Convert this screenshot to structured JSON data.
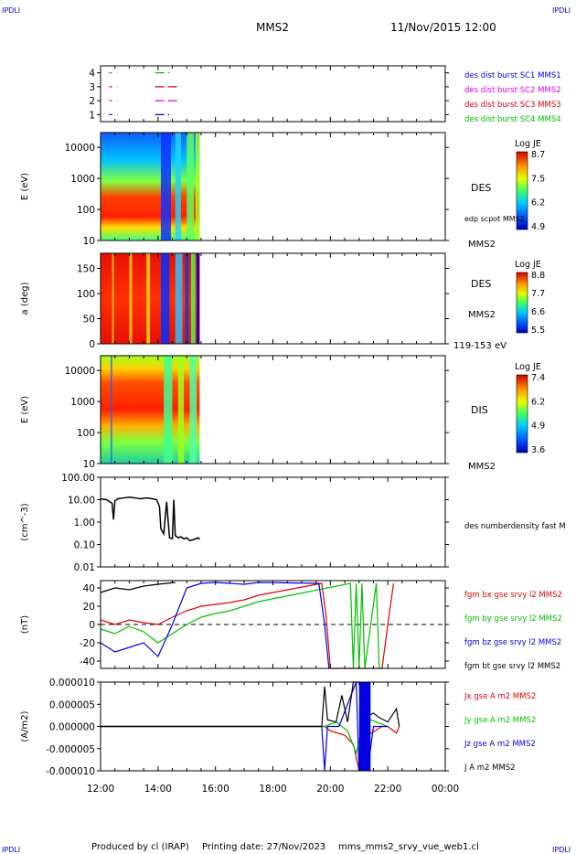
{
  "header": {
    "corner_left": "IPDLI",
    "corner_right": "IPDLI",
    "title": "MMS2",
    "datetime": "11/Nov/2015 12:00"
  },
  "footer": {
    "produced_by": "Produced by cl (IRAP)",
    "printing_date": "Printing date: 27/Nov/2023",
    "filename": "mms_mms2_srvy_vue_web1.cl",
    "corner_left": "IPDLI",
    "corner_right": "IPDLI"
  },
  "colors": {
    "red": "#e00000",
    "green": "#00c000",
    "blue": "#0000e0",
    "magenta": "#e000e0",
    "black": "#000000",
    "label_blue": "#0000c0"
  },
  "chart_data": [
    {
      "type": "scatter",
      "title": "",
      "ylabel": "",
      "yticks": [
        "1",
        "2",
        "3",
        "4"
      ],
      "ylim": [
        0.5,
        4.5
      ],
      "xlim": [
        12,
        24
      ],
      "legend": [
        "des dist burst SC1 MMS1",
        "des dist burst SC2 MMS2",
        "des dist burst SC3 MMS3",
        "des dist burst SC4 MMS4"
      ],
      "series": [
        {
          "name": "des dist burst SC1 MMS1",
          "level": 1,
          "color": "#0000e0",
          "segments": [
            [
              12.3,
              12.6
            ],
            [
              13.9,
              14.4
            ]
          ]
        },
        {
          "name": "des dist burst SC2 MMS2",
          "level": 2,
          "color": "#e000e0",
          "segments": [
            [
              12.3,
              12.6
            ],
            [
              13.9,
              14.8
            ]
          ]
        },
        {
          "name": "des dist burst SC3 MMS3",
          "level": 3,
          "color": "#e00000",
          "segments": [
            [
              12.3,
              12.6
            ],
            [
              13.9,
              14.8
            ]
          ]
        },
        {
          "name": "des dist burst SC4 MMS4",
          "level": 4,
          "color": "#00c000",
          "segments": [
            [
              12.3,
              12.6
            ],
            [
              13.9,
              14.4
            ]
          ]
        }
      ]
    },
    {
      "type": "heatmap",
      "ylabel": "E (eV)",
      "yscale": "log",
      "ylim": [
        10,
        30000
      ],
      "yticks": [
        "10000",
        "1000",
        "100",
        "10"
      ],
      "xlim": [
        12,
        24
      ],
      "data_end": 15.45,
      "colorbar": {
        "title": "Log JE",
        "labels": [
          "8.7",
          "7.5",
          "6.2",
          "4.9"
        ]
      },
      "right_labels": [
        "DES",
        "edp scpot MMS2",
        "MMS2"
      ]
    },
    {
      "type": "heatmap",
      "ylabel": "a (deg)",
      "ylim": [
        0,
        180
      ],
      "yticks": [
        "150",
        "100",
        "50",
        "0"
      ],
      "xlim": [
        12,
        24
      ],
      "data_end": 15.45,
      "colorbar": {
        "title": "Log JE",
        "labels": [
          "8.8",
          "7.7",
          "6.6",
          "5.5"
        ]
      },
      "right_labels": [
        "DES",
        "MMS2",
        "119-153 eV"
      ]
    },
    {
      "type": "heatmap",
      "ylabel": "E (eV)",
      "yscale": "log",
      "ylim": [
        10,
        30000
      ],
      "yticks": [
        "10000",
        "1000",
        "100",
        "10"
      ],
      "xlim": [
        12,
        24
      ],
      "data_end": 15.45,
      "colorbar": {
        "title": "Log JE",
        "labels": [
          "7.4",
          "6.2",
          "4.9",
          "3.6"
        ]
      },
      "right_labels": [
        "DIS",
        "MMS2"
      ]
    },
    {
      "type": "line",
      "ylabel": "(cm^-3)",
      "yscale": "log",
      "ylim": [
        0.01,
        100
      ],
      "yticks": [
        "100.00",
        "10.00",
        "1.00",
        "0.10",
        "0.01"
      ],
      "xlim": [
        12,
        24
      ],
      "legend": [
        "des numberdensity fast M"
      ],
      "series": [
        {
          "name": "des numberdensity fast M",
          "color": "#000000",
          "x": [
            12.0,
            12.2,
            12.4,
            12.45,
            12.5,
            12.6,
            12.8,
            13.0,
            13.2,
            13.4,
            13.6,
            13.8,
            13.95,
            14.05,
            14.1,
            14.2,
            14.3,
            14.4,
            14.5,
            14.55,
            14.6,
            14.7,
            14.8,
            14.9,
            15.0,
            15.1,
            15.2,
            15.3,
            15.4,
            15.45
          ],
          "y": [
            11,
            10,
            7,
            1.3,
            9,
            11,
            12,
            13,
            12,
            11,
            12,
            11,
            10,
            5,
            0.5,
            0.3,
            8,
            0.2,
            0.18,
            10,
            0.25,
            0.2,
            0.22,
            0.18,
            0.2,
            0.15,
            0.16,
            0.18,
            0.2,
            0.17
          ]
        }
      ]
    },
    {
      "type": "line",
      "ylabel": "(nT)",
      "ylim": [
        -48,
        48
      ],
      "yticks": [
        "40",
        "20",
        "0",
        "-20",
        "-40"
      ],
      "xlim": [
        12,
        24
      ],
      "legend": [
        "fgm bx gse srvy l2 MMS2",
        "fgm by gse srvy l2 MMS2",
        "fgm bz gse srvy l2 MMS2",
        "fgm bt gse srvy l2 MMS2"
      ],
      "series": [
        {
          "name": "fgm bx gse srvy l2 MMS2",
          "color": "#e00000",
          "x": [
            12.0,
            12.5,
            13.0,
            13.5,
            14.0,
            14.5,
            15.0,
            15.5,
            16.0,
            16.5,
            17.0,
            17.5,
            19.7,
            19.85,
            20.0,
            21.8,
            22.0,
            22.2
          ],
          "y": [
            5,
            0,
            5,
            2,
            0,
            8,
            15,
            20,
            22,
            24,
            27,
            32,
            45,
            10,
            -48,
            -48,
            0,
            45
          ]
        },
        {
          "name": "fgm by gse srvy l2 MMS2",
          "color": "#00c000",
          "x": [
            12.0,
            12.5,
            13.0,
            13.5,
            14.0,
            14.5,
            15.0,
            15.5,
            16.0,
            16.5,
            17.0,
            17.5,
            20.7,
            20.8,
            20.9,
            21.0,
            21.1,
            21.2,
            21.6,
            21.7
          ],
          "y": [
            -5,
            -10,
            -2,
            -8,
            -20,
            -10,
            0,
            8,
            12,
            15,
            20,
            25,
            45,
            -48,
            45,
            -48,
            45,
            -48,
            45,
            -48
          ]
        },
        {
          "name": "fgm bz gse srvy l2 MMS2",
          "color": "#0000e0",
          "x": [
            12.0,
            12.5,
            13.0,
            13.5,
            14.0,
            14.5,
            15.0,
            15.5,
            16.0,
            16.5,
            17.0,
            17.5,
            19.6,
            19.8,
            19.95
          ],
          "y": [
            -20,
            -30,
            -25,
            -20,
            -35,
            0,
            40,
            45,
            46,
            45,
            44,
            46,
            45,
            0,
            -48
          ]
        },
        {
          "name": "fgm bt gse srvy l2 MMS2",
          "color": "#000000",
          "x": [
            12.0,
            12.5,
            13.0,
            13.5,
            14.0,
            14.3,
            14.6
          ],
          "y": [
            35,
            40,
            38,
            42,
            44,
            45,
            46
          ]
        }
      ]
    },
    {
      "type": "line",
      "ylabel": "(A/m2)",
      "ylim": [
        -1e-05,
        1e-05
      ],
      "yticks": [
        "0.000010",
        "0.000005",
        "0.000000",
        "-0.000005",
        "-0.000010"
      ],
      "xlim": [
        12,
        24
      ],
      "legend": [
        "Jx gse A m2 MMS2",
        "Jy gse A m2 MMS2",
        "Jz gse A m2 MMS2",
        "J A m2 MMS2"
      ],
      "series": [
        {
          "name": "Jx gse A m2 MMS2",
          "color": "#e00000",
          "x": [
            12.0,
            15.0,
            19.8,
            20.0,
            20.5,
            20.8,
            21.0,
            21.3,
            21.8,
            22.0,
            22.3,
            22.4
          ],
          "y": [
            0,
            0,
            0,
            -1e-06,
            -2e-06,
            -4e-06,
            -1e-05,
            -2e-06,
            0,
            0,
            -1.5e-06,
            0
          ]
        },
        {
          "name": "Jy gse A m2 MMS2",
          "color": "#00c000",
          "x": [
            12.0,
            15.0,
            19.8,
            20.2,
            20.6,
            20.9,
            21.2,
            21.6,
            22.0
          ],
          "y": [
            0,
            0,
            0,
            1e-06,
            -1e-06,
            -6e-06,
            2e-06,
            1e-06,
            0
          ]
        },
        {
          "name": "Jz gse A m2 MMS2",
          "color": "#0000e0",
          "x": [
            12.0,
            15.0,
            19.7,
            19.8,
            19.9,
            20.3,
            20.9,
            21.0,
            21.1,
            21.3,
            21.5,
            22.0
          ],
          "y": [
            0,
            0,
            0,
            -1e-05,
            0,
            0,
            1e-05,
            -1e-05,
            1e-05,
            -1e-05,
            0,
            0
          ]
        },
        {
          "name": "J A m2 MMS2",
          "color": "#000000",
          "x": [
            12.0,
            15.0,
            19.7,
            19.8,
            19.9,
            20.2,
            20.4,
            20.6,
            20.8,
            20.9,
            21.0,
            21.2,
            21.5,
            21.7,
            22.0,
            22.3,
            22.4
          ],
          "y": [
            0,
            0,
            0,
            9e-06,
            1.5e-06,
            1e-06,
            7e-06,
            1e-06,
            1e-05,
            1e-05,
            1e-05,
            2e-06,
            3e-06,
            2e-06,
            1e-06,
            4e-06,
            0
          ]
        }
      ]
    }
  ],
  "x_axis": {
    "ticks": [
      "12:00",
      "14:00",
      "16:00",
      "18:00",
      "20:00",
      "22:00",
      "00:00"
    ]
  }
}
